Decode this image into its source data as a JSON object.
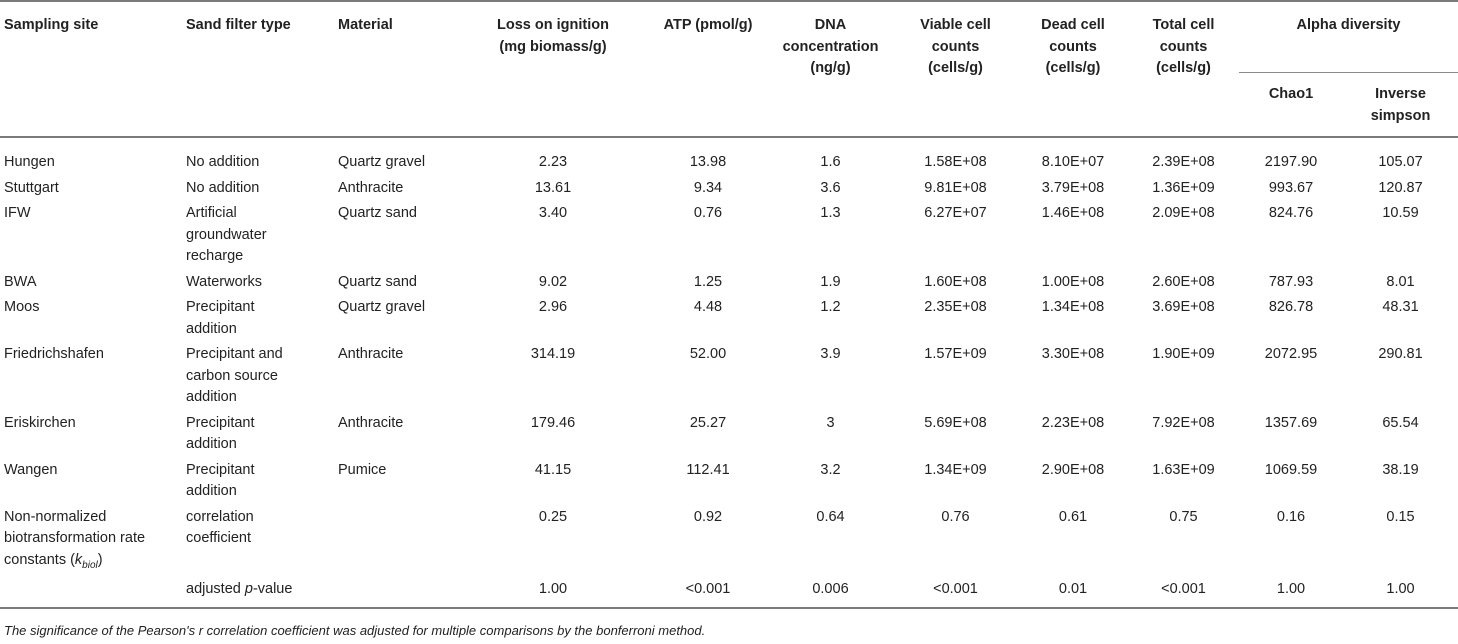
{
  "headers": {
    "site": "Sampling site",
    "filter": "Sand filter type",
    "material": "Material",
    "loi_l1": "Loss on ignition",
    "loi_l2": "(mg biomass/g)",
    "atp": "ATP (pmol/g)",
    "dna_l1": "DNA",
    "dna_l2": "concentration",
    "dna_l3": "(ng/g)",
    "viable_l1": "Viable cell",
    "viable_l2": "counts",
    "viable_l3": "(cells/g)",
    "dead_l1": "Dead cell",
    "dead_l2": "counts",
    "dead_l3": "(cells/g)",
    "total_l1": "Total cell",
    "total_l2": "counts",
    "total_l3": "(cells/g)",
    "alpha": "Alpha diversity",
    "chao": "Chao1",
    "inv_l1": "Inverse",
    "inv_l2": "simpson"
  },
  "rows": [
    {
      "site": "Hungen",
      "filter": [
        "No addition"
      ],
      "material": "Quartz gravel",
      "loi": "2.23",
      "atp": "13.98",
      "dna": "1.6",
      "viable": "1.58E+08",
      "dead": "8.10E+07",
      "total": "2.39E+08",
      "chao": "2197.90",
      "inv": "105.07"
    },
    {
      "site": "Stuttgart",
      "filter": [
        "No addition"
      ],
      "material": "Anthracite",
      "loi": "13.61",
      "atp": "9.34",
      "dna": "3.6",
      "viable": "9.81E+08",
      "dead": "3.79E+08",
      "total": "1.36E+09",
      "chao": "993.67",
      "inv": "120.87"
    },
    {
      "site": "IFW",
      "filter": [
        "Artificial",
        "groundwater",
        "recharge"
      ],
      "material": "Quartz sand",
      "loi": "3.40",
      "atp": "0.76",
      "dna": "1.3",
      "viable": "6.27E+07",
      "dead": "1.46E+08",
      "total": "2.09E+08",
      "chao": "824.76",
      "inv": "10.59"
    },
    {
      "site": "BWA",
      "filter": [
        "Waterworks"
      ],
      "material": "Quartz sand",
      "loi": "9.02",
      "atp": "1.25",
      "dna": "1.9",
      "viable": "1.60E+08",
      "dead": "1.00E+08",
      "total": "2.60E+08",
      "chao": "787.93",
      "inv": "8.01"
    },
    {
      "site": "Moos",
      "filter": [
        "Precipitant",
        "addition"
      ],
      "material": "Quartz gravel",
      "loi": "2.96",
      "atp": "4.48",
      "dna": "1.2",
      "viable": "2.35E+08",
      "dead": "1.34E+08",
      "total": "3.69E+08",
      "chao": "826.78",
      "inv": "48.31"
    },
    {
      "site": "Friedrichshafen",
      "filter": [
        "Precipitant and",
        "carbon source",
        "addition"
      ],
      "material": "Anthracite",
      "loi": "314.19",
      "atp": "52.00",
      "dna": "3.9",
      "viable": "1.57E+09",
      "dead": "3.30E+08",
      "total": "1.90E+09",
      "chao": "2072.95",
      "inv": "290.81"
    },
    {
      "site": "Eriskirchen",
      "filter": [
        "Precipitant",
        "addition"
      ],
      "material": "Anthracite",
      "loi": "179.46",
      "atp": "25.27",
      "dna": "3",
      "viable": "5.69E+08",
      "dead": "2.23E+08",
      "total": "7.92E+08",
      "chao": "1357.69",
      "inv": "65.54"
    },
    {
      "site": "Wangen",
      "filter": [
        "Precipitant",
        "addition"
      ],
      "material": "Pumice",
      "loi": "41.15",
      "atp": "112.41",
      "dna": "3.2",
      "viable": "1.34E+09",
      "dead": "2.90E+08",
      "total": "1.63E+09",
      "chao": "1069.59",
      "inv": "38.19"
    }
  ],
  "corr": {
    "site_l1": "Non-normalized",
    "site_l2": "biotransformation rate",
    "site_l3": "constants (",
    "site_k": "k",
    "site_sub": "biol",
    "site_close": ")",
    "label_l1": "correlation",
    "label_l2": "coefficient",
    "loi": "0.25",
    "atp": "0.92",
    "dna": "0.64",
    "viable": "0.76",
    "dead": "0.61",
    "total": "0.75",
    "chao": "0.16",
    "inv": "0.15"
  },
  "pval": {
    "label_pre": "adjusted ",
    "label_p": "p",
    "label_post": "-value",
    "loi": "1.00",
    "atp": "<0.001",
    "dna": "0.006",
    "viable": "<0.001",
    "dead": "0.01",
    "total": "<0.001",
    "chao": "1.00",
    "inv": "1.00"
  },
  "footnote": "The significance of the Pearson's r correlation coefficient was adjusted for multiple comparisons by the bonferroni method."
}
